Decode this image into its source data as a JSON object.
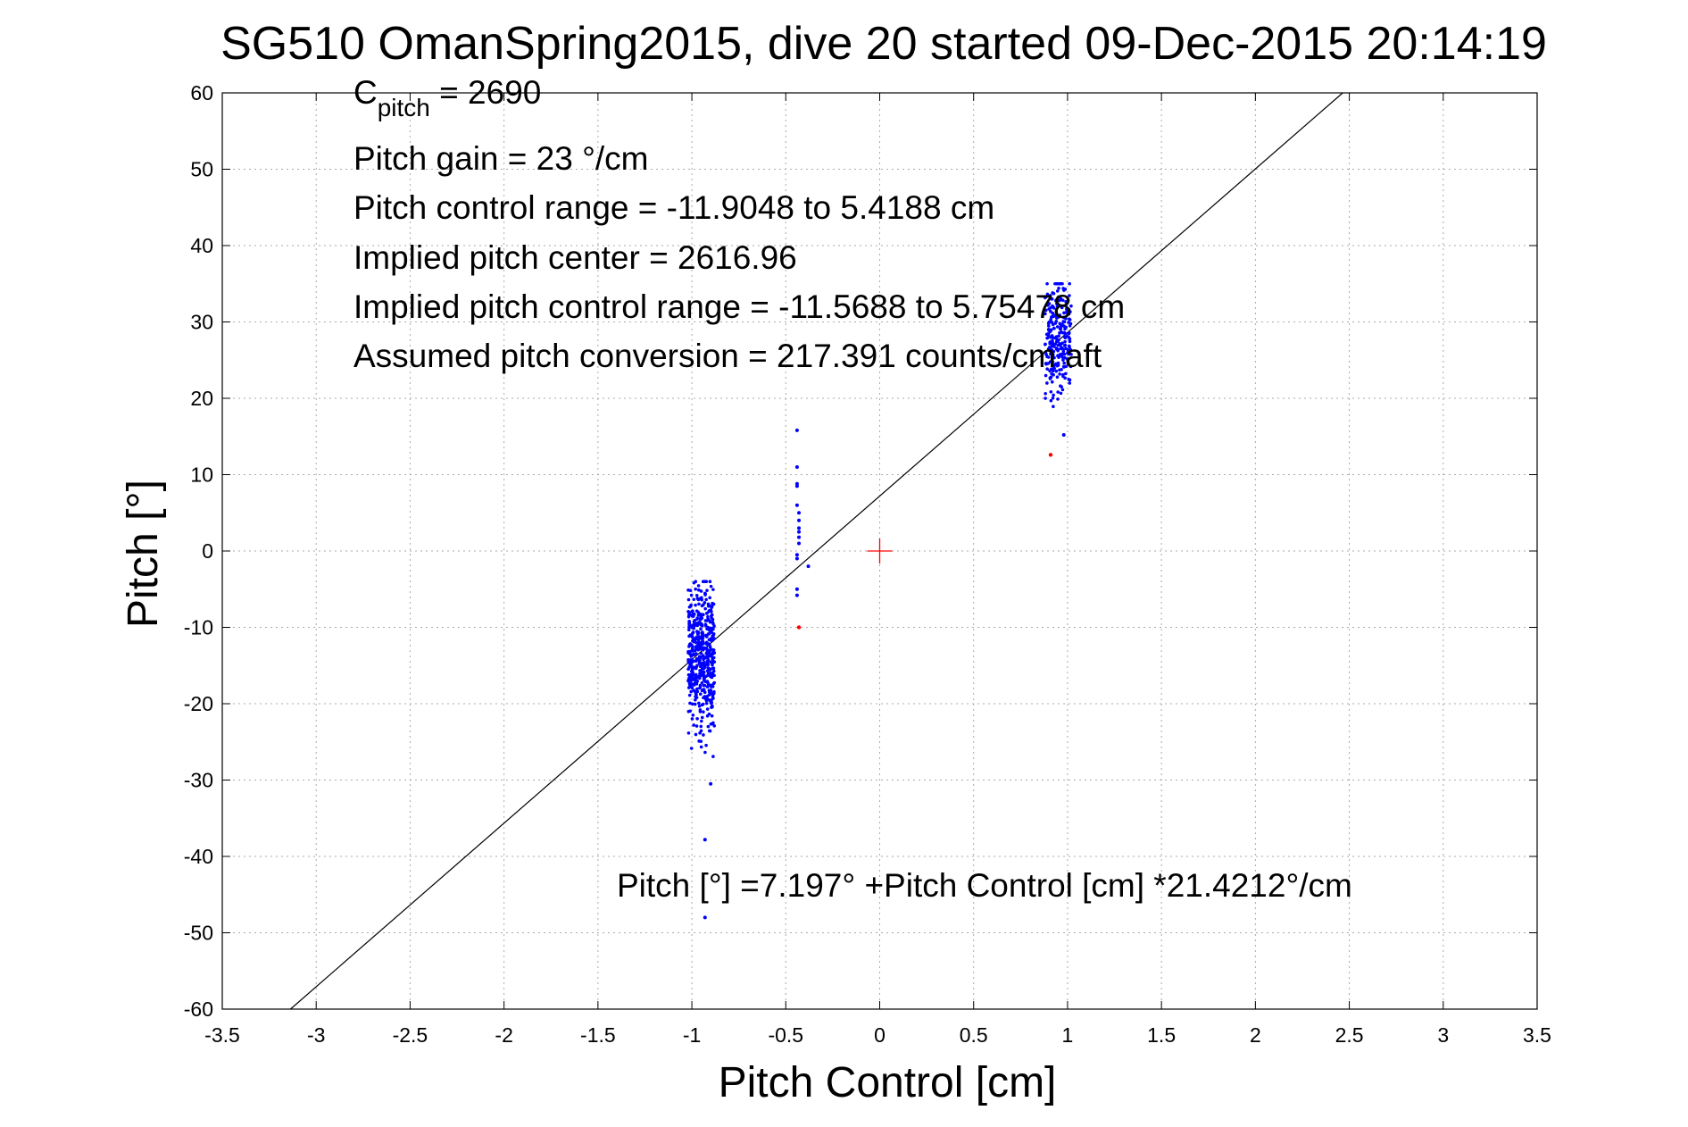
{
  "chart_data": {
    "type": "scatter",
    "title": "SG510 OmanSpring2015, dive 20 started 09-Dec-2015 20:14:19",
    "xlabel": "Pitch Control [cm]",
    "ylabel": "Pitch [°]",
    "xlim": [
      -3.5,
      3.5
    ],
    "ylim": [
      -60,
      60
    ],
    "xticks": [
      -3.5,
      -3,
      -2.5,
      -2,
      -1.5,
      -1,
      -0.5,
      0,
      0.5,
      1,
      1.5,
      2,
      2.5,
      3,
      3.5
    ],
    "yticks": [
      -60,
      -50,
      -40,
      -30,
      -20,
      -10,
      0,
      10,
      20,
      30,
      40,
      50,
      60
    ],
    "grid": true,
    "colors": {
      "points": "#0000ff",
      "excluded": "#ff0000",
      "fit_line": "#000000",
      "center_marker": "#ff0000"
    },
    "annotations": {
      "c_pitch_main": "C",
      "c_pitch_sub": "pitch",
      "c_pitch_value": " = 2690",
      "lines": [
        "Pitch gain = 23 °/cm",
        "Pitch control range = -11.9048 to 5.4188 cm",
        "Implied pitch center = 2616.96",
        "Implied pitch control range = -11.5688 to 5.75478 cm",
        "Assumed pitch conversion = 217.391 counts/cm aft"
      ],
      "fit_equation": "Pitch [°] =7.197° +Pitch Control [cm] *21.4212°/cm"
    },
    "fit": {
      "intercept": 7.197,
      "slope": 21.4212
    },
    "center_marker": {
      "x": 0,
      "y": 0
    },
    "clusters": [
      {
        "name": "",
        "x_range": [
          -1.02,
          -0.88
        ],
        "y_range": [
          -31,
          -4
        ],
        "y_center": -14,
        "count": 520,
        "color": "#0000ff"
      },
      {
        "name": "",
        "x_range": [
          0.88,
          1.02
        ],
        "y_range": [
          15,
          35
        ],
        "y_center": 28,
        "count": 260,
        "color": "#0000ff"
      }
    ],
    "points": [
      {
        "x": -0.44,
        "y": 15.8
      },
      {
        "x": -0.44,
        "y": 11.0
      },
      {
        "x": -0.44,
        "y": 8.8
      },
      {
        "x": -0.44,
        "y": 8.5
      },
      {
        "x": -0.44,
        "y": 6.0
      },
      {
        "x": -0.43,
        "y": 5.0
      },
      {
        "x": -0.43,
        "y": 4.0
      },
      {
        "x": -0.43,
        "y": 3.0
      },
      {
        "x": -0.43,
        "y": 2.5
      },
      {
        "x": -0.43,
        "y": 1.8
      },
      {
        "x": -0.43,
        "y": 1.0
      },
      {
        "x": -0.44,
        "y": -0.5
      },
      {
        "x": -0.44,
        "y": -1.0
      },
      {
        "x": -0.38,
        "y": -2.0
      },
      {
        "x": -0.44,
        "y": -5.0
      },
      {
        "x": -0.44,
        "y": -5.8
      },
      {
        "x": -0.93,
        "y": -37.8
      },
      {
        "x": -0.93,
        "y": -48.0
      },
      {
        "x": -0.9,
        "y": -30.5
      },
      {
        "x": 0.98,
        "y": 15.2
      }
    ],
    "excluded_points": [
      {
        "x": -0.43,
        "y": -10.0
      },
      {
        "x": 0.91,
        "y": 12.6
      }
    ]
  }
}
